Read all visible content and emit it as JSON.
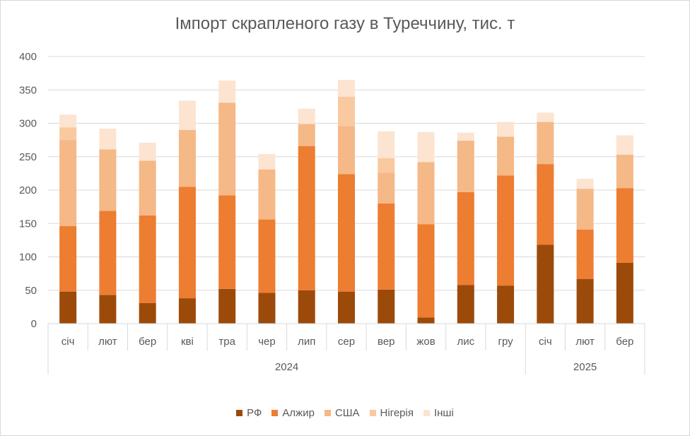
{
  "chart_data": {
    "type": "bar",
    "stacked": true,
    "title": "Імпорт скрапленого газу в Туреччину, тис. т",
    "xlabel": "",
    "ylabel": "",
    "ylim": [
      0,
      400
    ],
    "yticks": [
      0,
      50,
      100,
      150,
      200,
      250,
      300,
      350,
      400
    ],
    "grid": true,
    "legend_position": "bottom",
    "categories": [
      "січ",
      "лют",
      "бер",
      "кві",
      "тра",
      "чер",
      "лип",
      "сер",
      "вер",
      "жов",
      "лис",
      "гру",
      "січ",
      "лют",
      "бер"
    ],
    "groups": [
      {
        "label": "2024",
        "count": 12
      },
      {
        "label": "2025",
        "count": 3
      }
    ],
    "series": [
      {
        "name": "РФ",
        "color": "#9c4a0a",
        "values": [
          48,
          43,
          31,
          38,
          52,
          46,
          50,
          48,
          51,
          9,
          58,
          57,
          118,
          67,
          91
        ]
      },
      {
        "name": "Алжир",
        "color": "#ed7d31",
        "values": [
          98,
          126,
          131,
          167,
          140,
          110,
          216,
          176,
          129,
          140,
          139,
          165,
          121,
          74,
          112
        ]
      },
      {
        "name": "США",
        "color": "#f5b887",
        "values": [
          129,
          92,
          82,
          85,
          139,
          75,
          33,
          72,
          46,
          93,
          77,
          58,
          63,
          61,
          50
        ]
      },
      {
        "name": "Нігерія",
        "color": "#f9c9a0",
        "values": [
          19,
          0,
          0,
          0,
          0,
          0,
          0,
          44,
          22,
          0,
          0,
          0,
          0,
          0,
          0
        ]
      },
      {
        "name": "Інші",
        "color": "#fce4d1",
        "values": [
          19,
          31,
          27,
          44,
          33,
          23,
          23,
          25,
          40,
          45,
          12,
          22,
          14,
          15,
          29
        ]
      }
    ]
  }
}
